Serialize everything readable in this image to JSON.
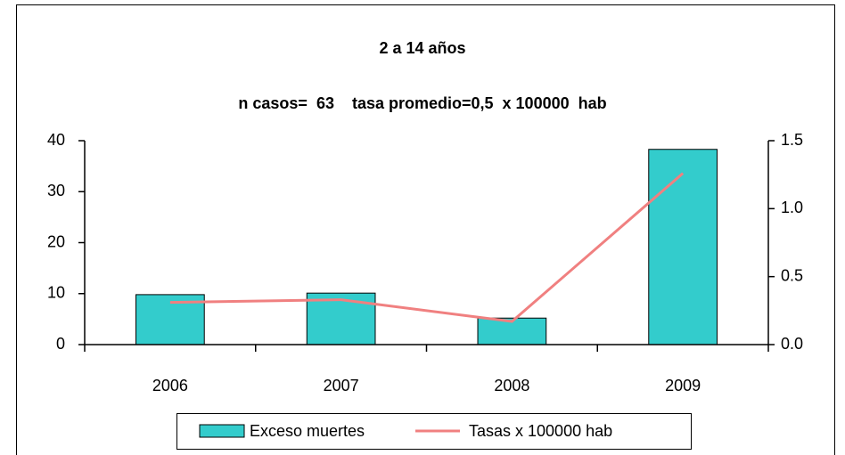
{
  "chart_data": {
    "type": "bar",
    "title": "2 a 14 años",
    "subtitle": "n casos=  63    tasa promedio=0,5  x 100000  hab",
    "categories": [
      "2006",
      "2007",
      "2008",
      "2009"
    ],
    "series": [
      {
        "name": "Exceso muertes",
        "type": "bar",
        "color": "#33cccc",
        "values": [
          9.8,
          10.1,
          5.2,
          38.3
        ]
      },
      {
        "name": "Tasas x 100000 hab",
        "type": "line",
        "color": "#f08080",
        "axis": "y2",
        "values": [
          0.31,
          0.33,
          0.17,
          1.26
        ]
      }
    ],
    "ylim": [
      0,
      40
    ],
    "yticks": [
      0,
      10,
      20,
      30,
      40
    ],
    "y2lim": [
      0,
      1.5
    ],
    "y2ticks": [
      {
        "value": 0,
        "label": "0.0"
      },
      {
        "value": 0.5,
        "label": "0.5"
      },
      {
        "value": 1,
        "label": "1.0"
      },
      {
        "value": 1.5,
        "label": "1.5"
      }
    ],
    "legend": "bottom"
  }
}
